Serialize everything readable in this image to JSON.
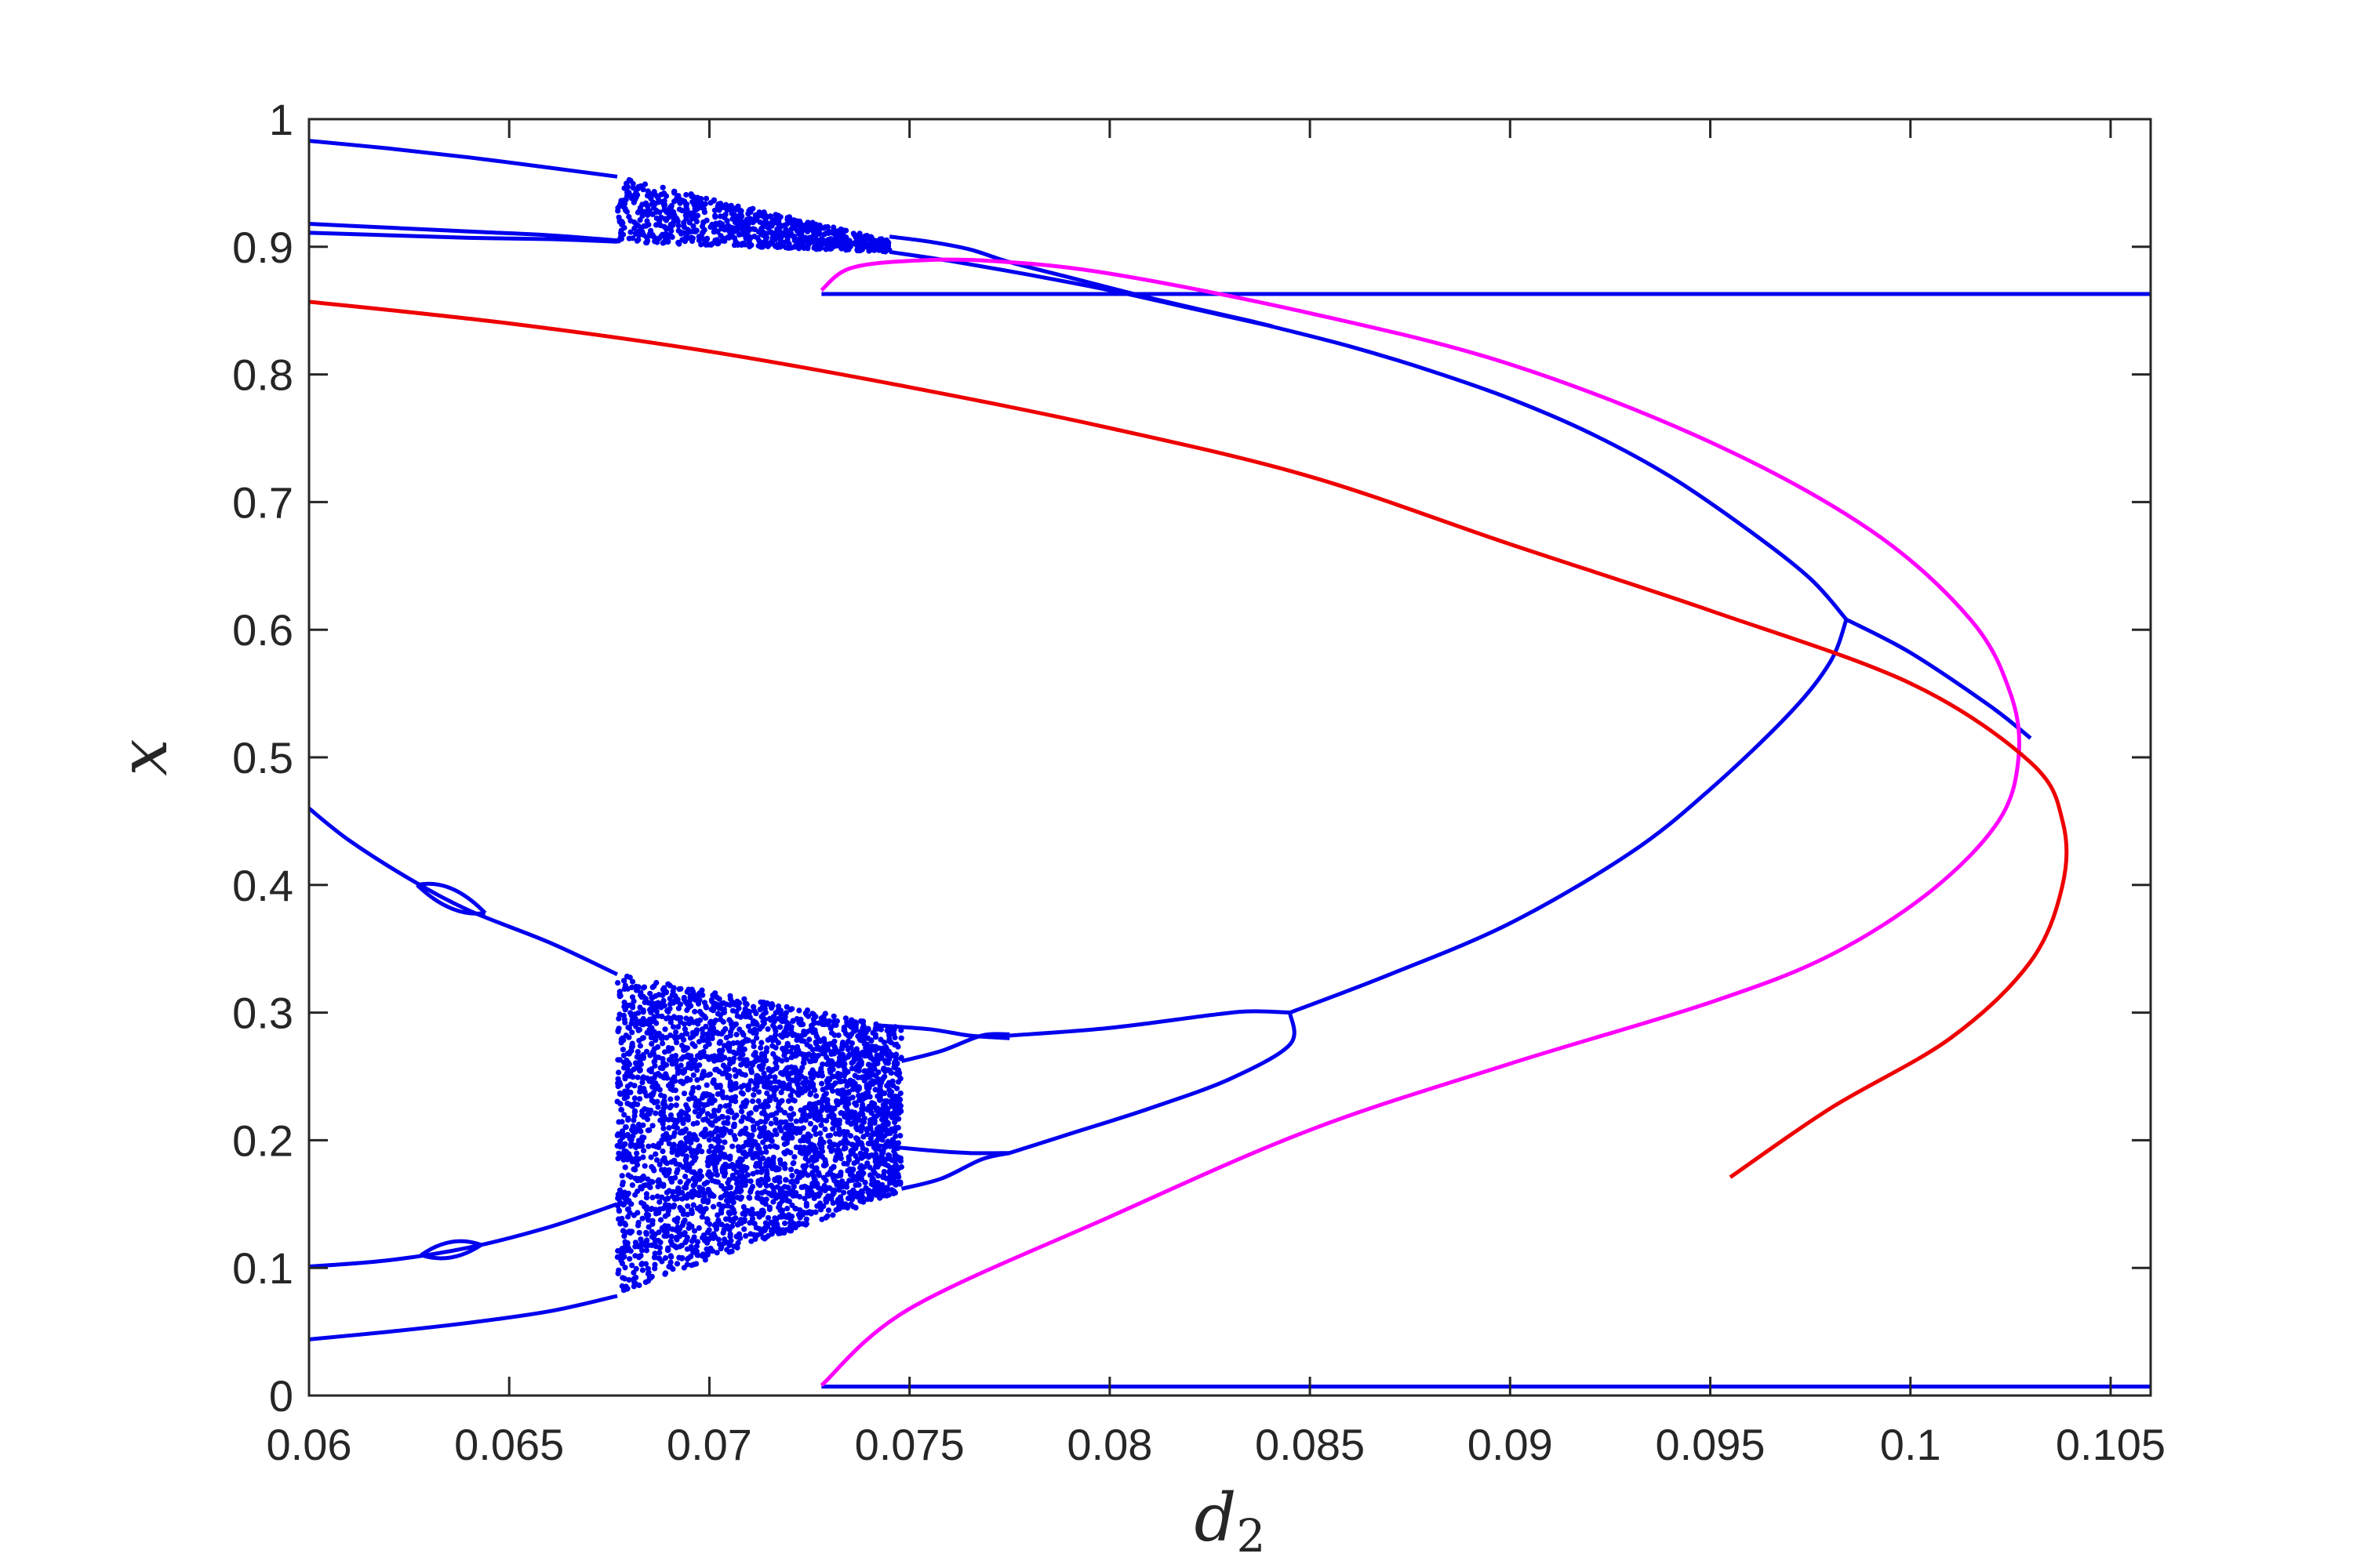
{
  "chart_data": {
    "type": "scatter",
    "title": "",
    "xlabel": "d",
    "xlabel_subscript": "2",
    "ylabel": "x",
    "xlim": [
      0.06,
      0.106
    ],
    "ylim": [
      0,
      1
    ],
    "grid": false,
    "legend": "none",
    "xticks": [
      0.06,
      0.065,
      0.07,
      0.075,
      0.08,
      0.085,
      0.09,
      0.095,
      0.1,
      0.105
    ],
    "xtick_labels": [
      "0.06",
      "0.065",
      "0.07",
      "0.075",
      "0.08",
      "0.085",
      "0.09",
      "0.095",
      "0.1",
      "0.105"
    ],
    "yticks": [
      0,
      0.1,
      0.2,
      0.3,
      0.4,
      0.5,
      0.6,
      0.7,
      0.8,
      0.9,
      1
    ],
    "ytick_labels": [
      "0",
      "0.1",
      "0.2",
      "0.3",
      "0.4",
      "0.5",
      "0.6",
      "0.7",
      "0.8",
      "0.9",
      "1"
    ],
    "colors": {
      "blue": "#0000ee",
      "red": "#ee0000",
      "magenta": "#ff00ff",
      "axis": "#262626"
    },
    "series": [
      {
        "color": "blue",
        "style": "line",
        "points": [
          [
            0.06,
            0.983
          ],
          [
            0.062,
            0.977
          ],
          [
            0.064,
            0.97
          ],
          [
            0.066,
            0.962
          ],
          [
            0.0677,
            0.955
          ]
        ]
      },
      {
        "color": "blue",
        "style": "line",
        "points": [
          [
            0.06,
            0.918
          ],
          [
            0.062,
            0.915
          ],
          [
            0.064,
            0.912
          ],
          [
            0.066,
            0.909
          ],
          [
            0.0677,
            0.905
          ]
        ]
      },
      {
        "color": "blue",
        "style": "line",
        "points": [
          [
            0.06,
            0.911
          ],
          [
            0.062,
            0.909
          ],
          [
            0.064,
            0.907
          ],
          [
            0.066,
            0.906
          ],
          [
            0.0677,
            0.904
          ]
        ]
      },
      {
        "color": "blue",
        "style": "line",
        "points": [
          [
            0.0745,
            0.908
          ],
          [
            0.0755,
            0.904
          ],
          [
            0.0765,
            0.898
          ],
          [
            0.0775,
            0.888
          ],
          [
            0.079,
            0.876
          ],
          [
            0.081,
            0.86
          ],
          [
            0.0835,
            0.842
          ]
        ]
      },
      {
        "color": "blue",
        "style": "line",
        "points": [
          [
            0.0745,
            0.896
          ],
          [
            0.076,
            0.889
          ],
          [
            0.078,
            0.878
          ],
          [
            0.08,
            0.866
          ],
          [
            0.082,
            0.852
          ],
          [
            0.084,
            0.838
          ],
          [
            0.0835,
            0.842
          ]
        ]
      },
      {
        "color": "blue",
        "style": "line",
        "points": [
          [
            0.084,
            0.838
          ],
          [
            0.086,
            0.822
          ],
          [
            0.088,
            0.803
          ],
          [
            0.09,
            0.781
          ],
          [
            0.092,
            0.754
          ],
          [
            0.094,
            0.72
          ],
          [
            0.096,
            0.677
          ],
          [
            0.0975,
            0.64
          ],
          [
            0.0984,
            0.608
          ]
        ]
      },
      {
        "color": "blue",
        "style": "line",
        "points": [
          [
            0.0984,
            0.608
          ],
          [
            0.1,
            0.582
          ],
          [
            0.102,
            0.54
          ],
          [
            0.103,
            0.515
          ]
        ]
      },
      {
        "color": "blue",
        "style": "line",
        "points": [
          [
            0.0984,
            0.608
          ],
          [
            0.098,
            0.575
          ],
          [
            0.097,
            0.535
          ],
          [
            0.095,
            0.475
          ],
          [
            0.093,
            0.425
          ],
          [
            0.09,
            0.37
          ],
          [
            0.087,
            0.33
          ],
          [
            0.0845,
            0.3
          ]
        ]
      },
      {
        "color": "blue",
        "style": "line",
        "points": [
          [
            0.06,
            0.46
          ],
          [
            0.061,
            0.435
          ],
          [
            0.0625,
            0.405
          ],
          [
            0.064,
            0.38
          ],
          [
            0.066,
            0.355
          ],
          [
            0.0677,
            0.33
          ]
        ]
      },
      {
        "color": "blue",
        "style": "line",
        "points": [
          [
            0.0742,
            0.29
          ],
          [
            0.0755,
            0.287
          ],
          [
            0.0765,
            0.282
          ],
          [
            0.0775,
            0.28
          ]
        ]
      },
      {
        "color": "blue",
        "style": "line",
        "points": [
          [
            0.0748,
            0.262
          ],
          [
            0.0758,
            0.27
          ],
          [
            0.0768,
            0.282
          ],
          [
            0.0775,
            0.283
          ]
        ]
      },
      {
        "color": "blue",
        "style": "line",
        "points": [
          [
            0.0775,
            0.282
          ],
          [
            0.08,
            0.288
          ],
          [
            0.0825,
            0.298
          ],
          [
            0.0835,
            0.301
          ],
          [
            0.0845,
            0.3
          ]
        ]
      },
      {
        "color": "blue",
        "style": "line",
        "points": [
          [
            0.0742,
            0.196
          ],
          [
            0.0755,
            0.192
          ],
          [
            0.0765,
            0.19
          ],
          [
            0.0775,
            0.19
          ]
        ]
      },
      {
        "color": "blue",
        "style": "line",
        "points": [
          [
            0.0748,
            0.162
          ],
          [
            0.0758,
            0.17
          ],
          [
            0.0768,
            0.185
          ],
          [
            0.0775,
            0.19
          ]
        ]
      },
      {
        "color": "blue",
        "style": "line",
        "points": [
          [
            0.0775,
            0.19
          ],
          [
            0.079,
            0.205
          ],
          [
            0.081,
            0.225
          ],
          [
            0.083,
            0.248
          ],
          [
            0.0845,
            0.275
          ],
          [
            0.0845,
            0.3
          ]
        ]
      },
      {
        "color": "blue",
        "style": "line",
        "points": [
          [
            0.06,
            0.101
          ],
          [
            0.062,
            0.106
          ],
          [
            0.064,
            0.116
          ],
          [
            0.066,
            0.132
          ],
          [
            0.0677,
            0.15
          ]
        ]
      },
      {
        "color": "blue",
        "style": "line",
        "points": [
          [
            0.06,
            0.044
          ],
          [
            0.062,
            0.05
          ],
          [
            0.064,
            0.057
          ],
          [
            0.066,
            0.066
          ],
          [
            0.0677,
            0.078
          ]
        ]
      },
      {
        "color": "blue",
        "style": "line",
        "points": [
          [
            0.0728,
            0.863
          ],
          [
            0.106,
            0.863
          ]
        ]
      },
      {
        "color": "blue",
        "style": "line",
        "points": [
          [
            0.0728,
            0.007
          ],
          [
            0.106,
            0.007
          ]
        ]
      },
      {
        "color": "magenta",
        "style": "line",
        "points": [
          [
            0.0728,
            0.866
          ],
          [
            0.0735,
            0.883
          ],
          [
            0.075,
            0.889
          ],
          [
            0.077,
            0.889
          ],
          [
            0.08,
            0.879
          ],
          [
            0.085,
            0.848
          ],
          [
            0.09,
            0.808
          ],
          [
            0.095,
            0.747
          ],
          [
            0.099,
            0.678
          ],
          [
            0.1015,
            0.608
          ],
          [
            0.1025,
            0.55
          ],
          [
            0.1027,
            0.5
          ],
          [
            0.1022,
            0.45
          ],
          [
            0.1005,
            0.395
          ],
          [
            0.098,
            0.345
          ],
          [
            0.095,
            0.308
          ],
          [
            0.09,
            0.26
          ],
          [
            0.085,
            0.208
          ],
          [
            0.08,
            0.14
          ],
          [
            0.075,
            0.068
          ],
          [
            0.0728,
            0.008
          ]
        ]
      },
      {
        "color": "red",
        "style": "line",
        "points": [
          [
            0.06,
            0.857
          ],
          [
            0.065,
            0.84
          ],
          [
            0.07,
            0.818
          ],
          [
            0.075,
            0.79
          ],
          [
            0.08,
            0.758
          ],
          [
            0.085,
            0.72
          ],
          [
            0.09,
            0.667
          ],
          [
            0.095,
            0.615
          ],
          [
            0.1,
            0.558
          ],
          [
            0.103,
            0.496
          ],
          [
            0.1038,
            0.45
          ],
          [
            0.1038,
            0.4
          ],
          [
            0.103,
            0.34
          ],
          [
            0.101,
            0.28
          ],
          [
            0.098,
            0.225
          ],
          [
            0.0955,
            0.171
          ]
        ]
      }
    ],
    "small_loops": [
      {
        "color": "blue",
        "x_start": 0.0627,
        "x_end": 0.0644,
        "y_upper": 0.397,
        "y_lower": 0.383,
        "y_join_start": 0.4,
        "y_join_end": 0.378
      },
      {
        "color": "blue",
        "x_start": 0.0628,
        "x_end": 0.0643,
        "y_upper": 0.118,
        "y_lower": 0.111,
        "y_join_start": 0.11,
        "y_join_end": 0.118
      }
    ],
    "chaotic_regions": [
      {
        "color": "blue",
        "x_start": 0.0677,
        "x_end": 0.0745,
        "upper_start": 0.955,
        "upper_end": 0.905,
        "lower_start": 0.904,
        "lower_end": 0.896,
        "density": 900
      },
      {
        "color": "blue",
        "x_start": 0.0677,
        "x_end": 0.0748,
        "upper_start": 0.33,
        "upper_end": 0.288,
        "lower_start": 0.08,
        "lower_end": 0.16,
        "density": 3400
      }
    ]
  }
}
